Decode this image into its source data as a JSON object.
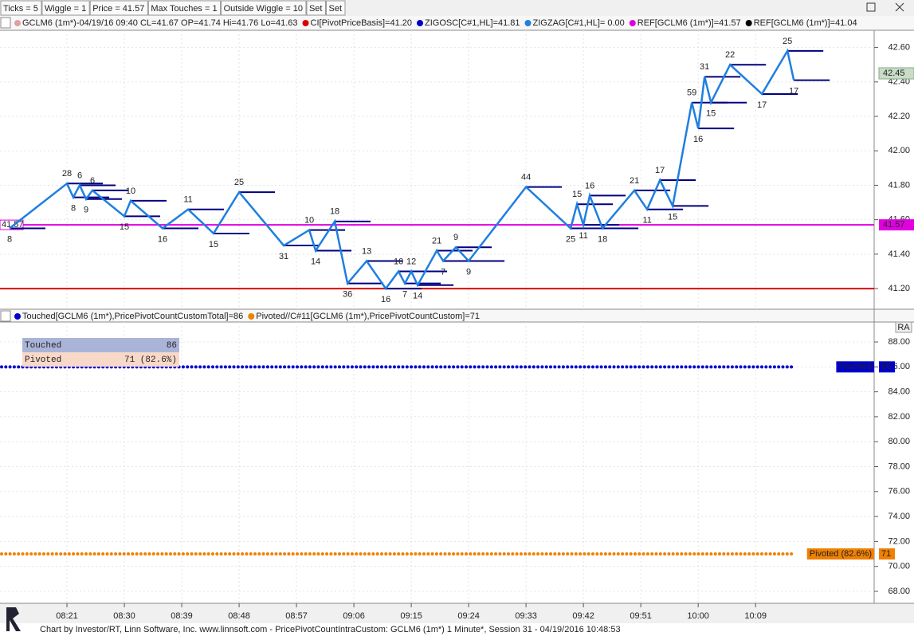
{
  "toolbar": {
    "buttons": [
      "Ticks = 5",
      "Wiggle = 1",
      "Price = 41.57",
      "Max Touches = 1",
      "Outside Wiggle = 10",
      "Set",
      "Set"
    ]
  },
  "upper_chart": {
    "legend": [
      {
        "text": "GCLM6 (1m*)-04/19/16 09:40 CL=41.67 OP=41.74 Hi=41.76 Lo=41.63",
        "color": "#e0a0a0"
      },
      {
        "text": "CI[PivotPriceBasis]=41.20",
        "color": "#dd0000"
      },
      {
        "text": "ZIGOSC[C#1,HL]=41.81",
        "color": "#0000cc"
      },
      {
        "text": "ZIGZAG[C#1,HL]= 0.00",
        "color": "#1e7fe0"
      },
      {
        "text": "REF[GCLM6 (1m*)]=41.57",
        "color": "#e000e0"
      },
      {
        "text": "REF[GCLM6 (1m*)]=41.04",
        "color": "#000000"
      }
    ],
    "xlim": [
      490.5,
      627.6
    ],
    "xticks": [
      {
        "value": 501,
        "label": "08:21"
      },
      {
        "value": 510,
        "label": "08:30"
      },
      {
        "value": 519,
        "label": "08:39"
      },
      {
        "value": 528,
        "label": "08:48"
      },
      {
        "value": 537,
        "label": "08:57"
      },
      {
        "value": 546,
        "label": "09:06"
      },
      {
        "value": 555,
        "label": "09:15"
      },
      {
        "value": 564,
        "label": "09:24"
      },
      {
        "value": 573,
        "label": "09:33"
      },
      {
        "value": 582,
        "label": "09:42"
      },
      {
        "value": 591,
        "label": "09:51"
      },
      {
        "value": 600,
        "label": "10:00"
      },
      {
        "value": 609,
        "label": "10:09"
      }
    ],
    "ylim": [
      41.08,
      42.7
    ],
    "yticks": [
      {
        "value": 41.2,
        "label": "41.20"
      },
      {
        "value": 41.4,
        "label": "41.40"
      },
      {
        "value": 41.6,
        "label": "41.60"
      },
      {
        "value": 41.8,
        "label": "41.80"
      },
      {
        "value": 42.0,
        "label": "42.00"
      },
      {
        "value": 42.2,
        "label": "42.20"
      },
      {
        "value": 42.4,
        "label": "42.40"
      },
      {
        "value": 42.6,
        "label": "42.60"
      }
    ],
    "pivot_times": [
      492,
      501,
      502,
      503,
      504,
      505,
      510,
      511,
      516,
      520,
      524,
      528,
      535,
      539,
      540,
      543,
      545,
      548,
      551,
      553,
      554,
      555,
      556,
      559,
      560,
      562,
      564,
      573,
      580,
      581,
      582,
      583,
      585,
      590,
      592,
      594,
      596,
      599,
      600,
      601,
      602,
      605,
      610,
      614,
      615
    ],
    "pivot_prices": [
      41.55,
      41.81,
      41.73,
      41.8,
      41.72,
      41.77,
      41.62,
      41.71,
      41.55,
      41.66,
      41.52,
      41.76,
      41.45,
      41.54,
      41.42,
      41.59,
      41.23,
      41.36,
      41.2,
      41.3,
      41.23,
      41.3,
      41.22,
      41.42,
      41.36,
      41.44,
      41.36,
      41.79,
      41.55,
      41.69,
      41.57,
      41.74,
      41.55,
      41.77,
      41.66,
      41.83,
      41.68,
      42.28,
      42.13,
      42.43,
      42.28,
      42.5,
      42.33,
      42.58,
      42.41
    ],
    "pivot_counts": [
      8,
      28,
      8,
      6,
      9,
      6,
      15,
      10,
      16,
      11,
      15,
      25,
      31,
      10,
      14,
      18,
      36,
      13,
      16,
      10,
      7,
      12,
      14,
      21,
      7,
      9,
      9,
      44,
      25,
      15,
      11,
      16,
      18,
      21,
      11,
      17,
      15,
      59,
      16,
      31,
      15,
      22,
      17,
      25,
      17
    ],
    "ref_lines": [
      {
        "value": 41.57,
        "color": "#e000e0"
      },
      {
        "value": 41.2,
        "color": "#dd0000"
      }
    ],
    "last_price": 42.45
  },
  "lower_chart": {
    "legend": [
      {
        "text": "Touched[GCLM6 (1m*),PricePivotCountCustomTotal]=86",
        "color": "#0000cc"
      },
      {
        "text": "Pivoted//C#11[GCLM6 (1m*),PricePivotCountCustom]=71",
        "color": "#f08000"
      }
    ],
    "button": "RA",
    "ylim": [
      67.04,
      89.6
    ],
    "yticks": [
      {
        "value": 68,
        "label": "68.00"
      },
      {
        "value": 70,
        "label": "70.00"
      },
      {
        "value": 72,
        "label": "72.00"
      },
      {
        "value": 74,
        "label": "74.00"
      },
      {
        "value": 76,
        "label": "76.00"
      },
      {
        "value": 78,
        "label": "78.00"
      },
      {
        "value": 80,
        "label": "80.00"
      },
      {
        "value": 82,
        "label": "82.00"
      },
      {
        "value": 84,
        "label": "84.00"
      },
      {
        "value": 86,
        "label": "86.00"
      },
      {
        "value": 88,
        "label": "88.00"
      }
    ],
    "series": [
      {
        "name": "Touched",
        "color": "#0000cc",
        "value": 86,
        "table_label": "86",
        "axis_name": "Touched"
      },
      {
        "name": "Pivoted",
        "color": "#f08000",
        "value": 71,
        "table_label": "71 (82.6%)",
        "axis_name": "Pivoted (82.6%)"
      }
    ]
  },
  "footer": "Chart by Investor/RT, Linn Software, Inc. www.linnsoft.com - PricePivotCountIntraCustom: GCLM6 (1m*) 1 Minute*, Session 31 - 04/19/2016 10:48:53"
}
